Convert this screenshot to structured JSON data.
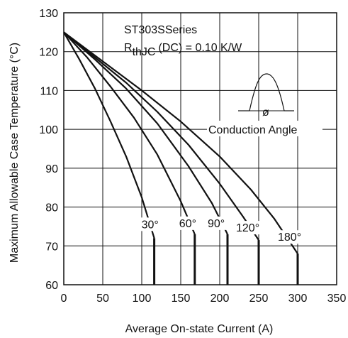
{
  "chart_data": {
    "type": "line",
    "xlabel": "Average On-state Current (A)",
    "ylabel": "Maximum Allowable Case Temperature (°C)",
    "xlim": [
      0,
      350
    ],
    "ylim": [
      60,
      130
    ],
    "x_ticks": [
      0,
      50,
      100,
      150,
      200,
      250,
      300,
      350
    ],
    "y_ticks": [
      60,
      70,
      80,
      90,
      100,
      110,
      120,
      130
    ],
    "grid": true,
    "annotation_series": "ST303SSeries",
    "annotation_rth_main": "R",
    "annotation_rth_sub": "thJC",
    "annotation_rth_rest": "(DC) = 0.10 K/W",
    "inset_angle_symbol": "ø",
    "inset_label": "Conduction Angle",
    "series": [
      {
        "name": "30°",
        "label": "30°",
        "x": [
          0,
          20,
          40,
          60,
          80,
          100,
          116
        ],
        "y": [
          125,
          118,
          110.5,
          102,
          93,
          82.5,
          72
        ]
      },
      {
        "name": "60°",
        "label": "60°",
        "x": [
          0,
          30,
          60,
          90,
          120,
          150,
          168
        ],
        "y": [
          125,
          118.5,
          111,
          103,
          93.5,
          81.5,
          73
        ]
      },
      {
        "name": "90°",
        "label": "90°",
        "x": [
          0,
          40,
          80,
          120,
          160,
          190,
          210
        ],
        "y": [
          125,
          118,
          110.5,
          101.5,
          90.5,
          81,
          73
        ]
      },
      {
        "name": "120°",
        "label": "120°",
        "x": [
          0,
          40,
          80,
          120,
          160,
          200,
          230,
          250
        ],
        "y": [
          125,
          118.5,
          112,
          104.5,
          96,
          86,
          77.5,
          71.5
        ]
      },
      {
        "name": "180°",
        "label": "180°",
        "x": [
          0,
          50,
          100,
          150,
          200,
          240,
          270,
          300
        ],
        "y": [
          125,
          117.5,
          110,
          102,
          93,
          84.5,
          77,
          68
        ]
      }
    ]
  }
}
